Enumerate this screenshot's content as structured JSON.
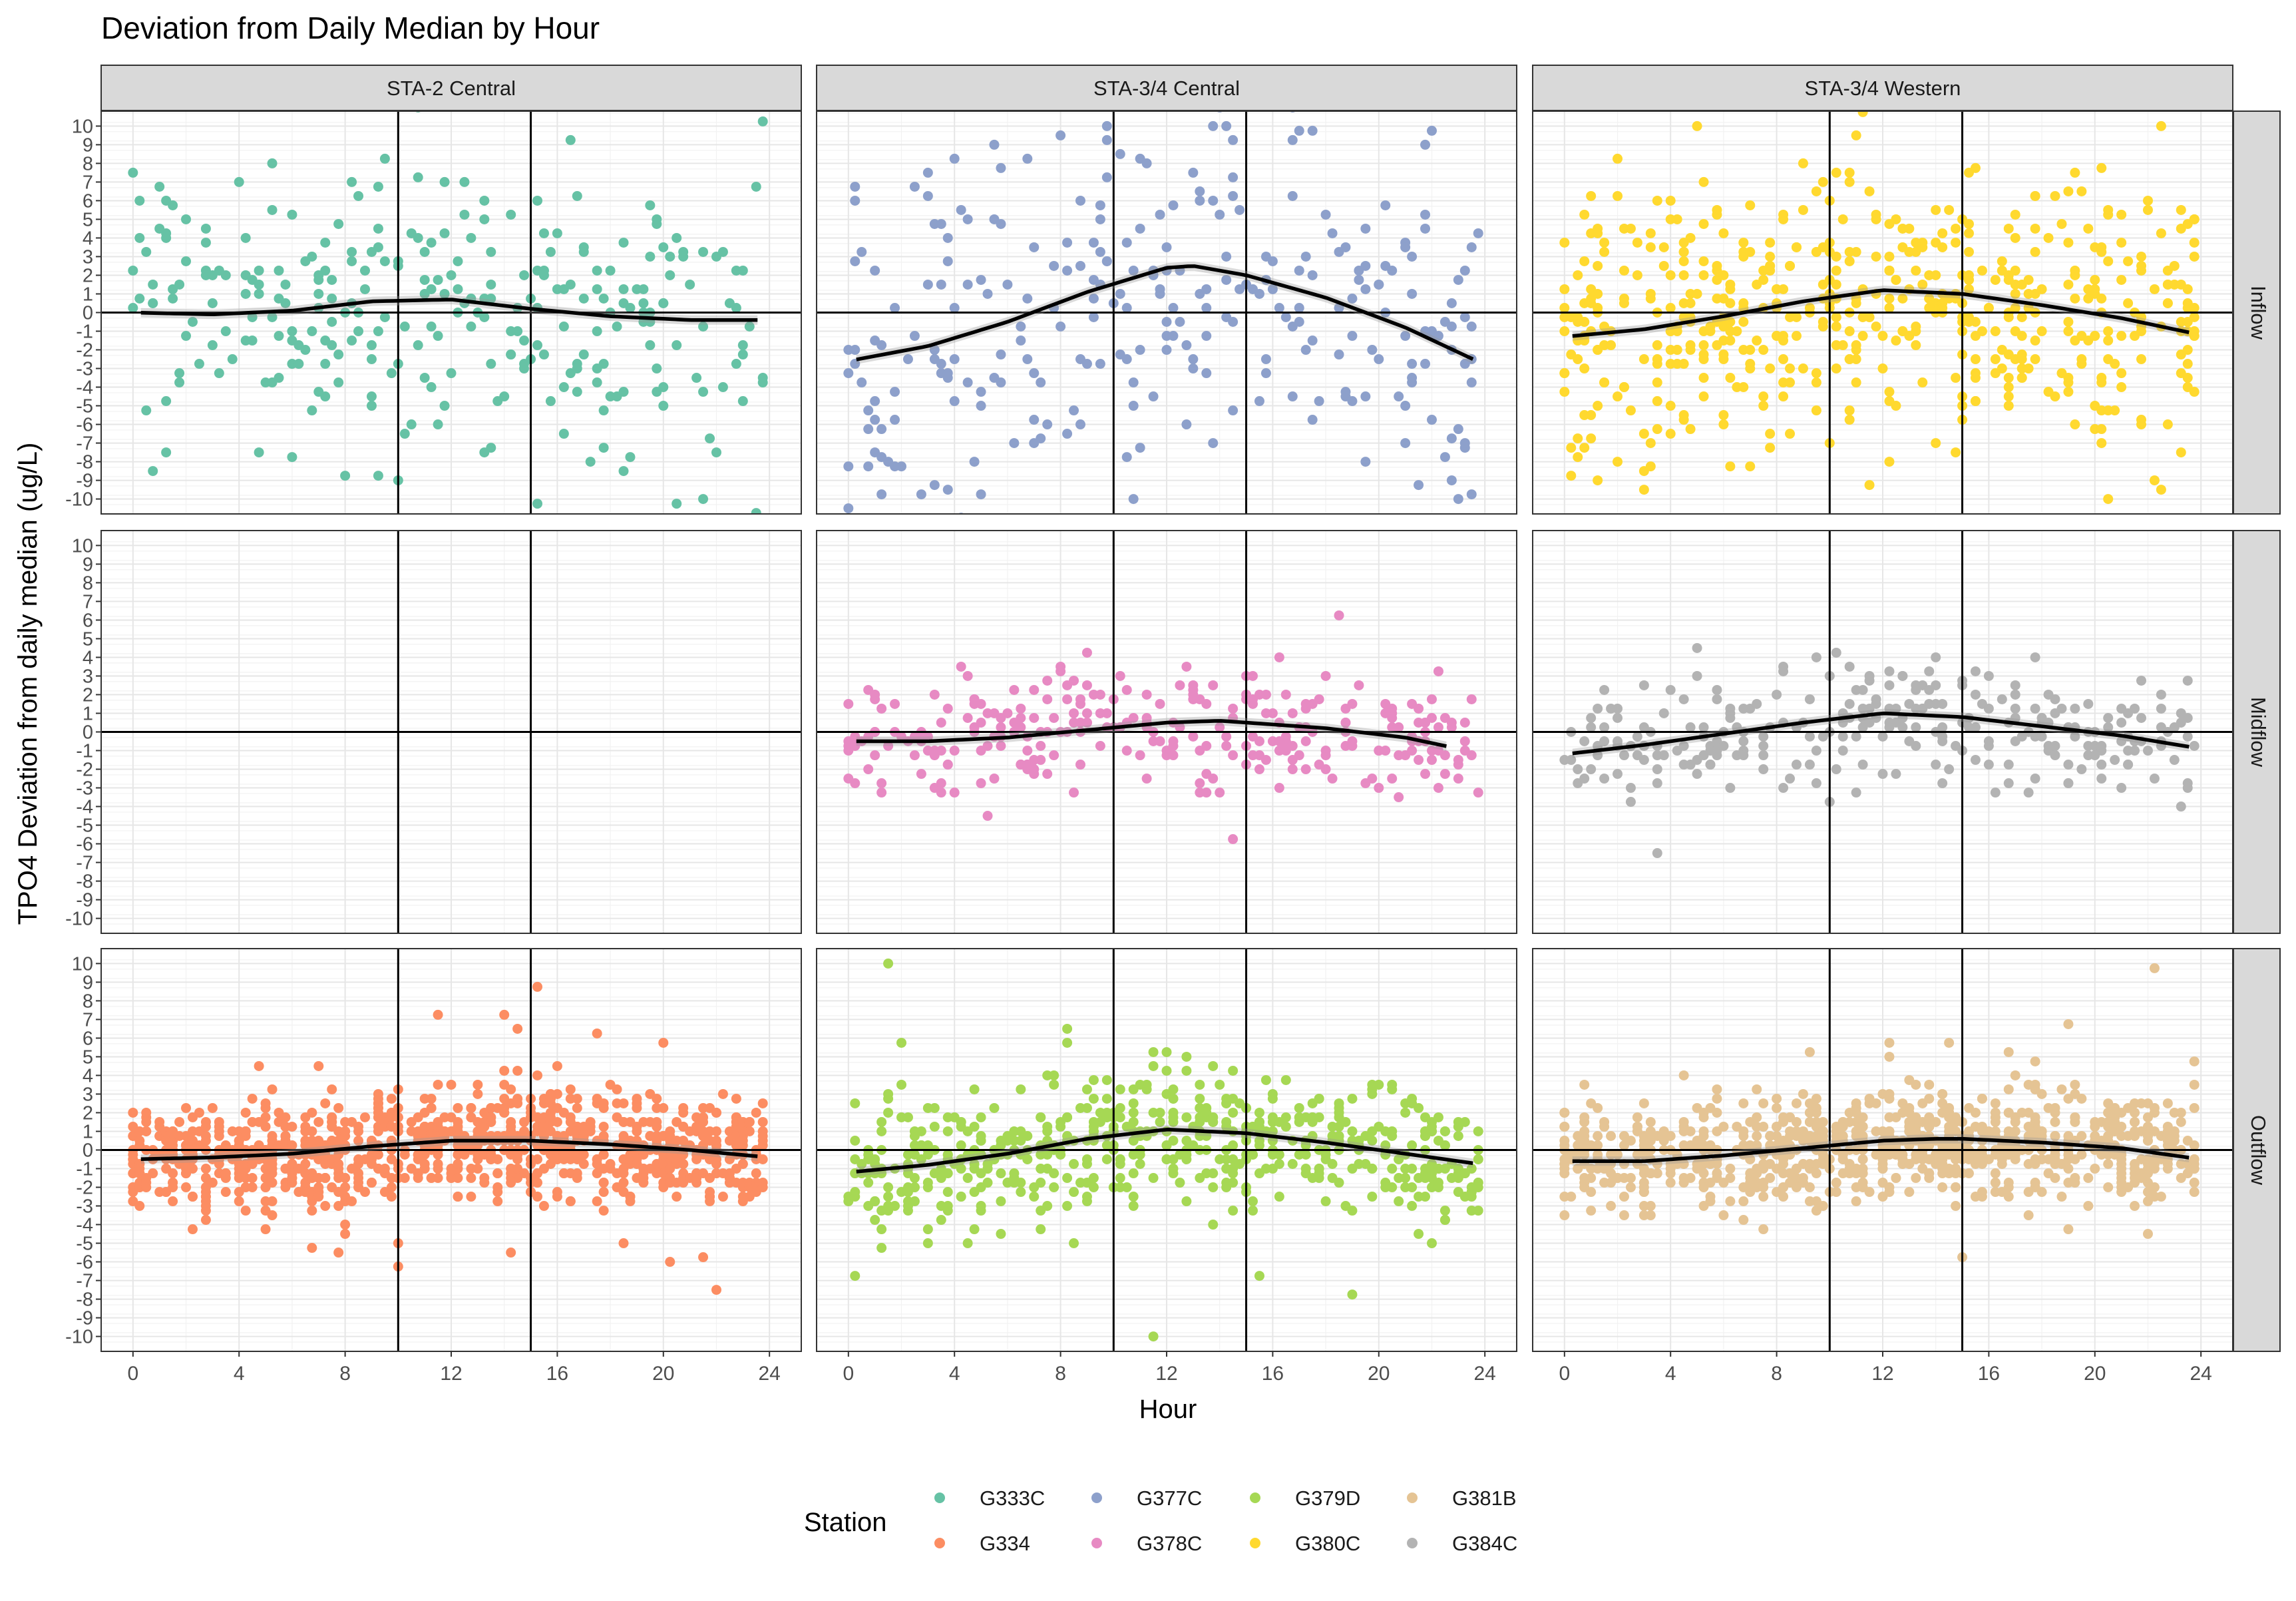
{
  "chart_data": {
    "type": "scatter",
    "title": "Deviation from Daily Median by Hour",
    "xlabel": "Hour",
    "ylabel": "TPO4 Deviation from daily median (ug/L)",
    "xlim": [
      -1.2,
      25.2
    ],
    "ylim": [
      -10.8,
      10.8
    ],
    "x_ticks": [
      "0",
      "4",
      "8",
      "12",
      "16",
      "20",
      "24"
    ],
    "y_ticks": [
      "-10",
      "-9",
      "-8",
      "-7",
      "-6",
      "-5",
      "-4",
      "-3",
      "-2",
      "-1",
      "0",
      "1",
      "2",
      "3",
      "4",
      "5",
      "6",
      "7",
      "8",
      "9",
      "10"
    ],
    "reference_lines": {
      "vertical_hours": [
        10,
        15
      ],
      "horizontal_value": 0
    },
    "facet_columns": [
      "STA-2 Central",
      "STA-3/4 Central",
      "STA-3/4 Western"
    ],
    "facet_rows": [
      "Inflow",
      "Midflow",
      "Outflow"
    ],
    "legend": {
      "title": "Station",
      "position": "bottom",
      "entries": [
        {
          "label": "G333C",
          "color": "#66C2A5"
        },
        {
          "label": "G334",
          "color": "#FC8D62"
        },
        {
          "label": "G377C",
          "color": "#8DA0CB"
        },
        {
          "label": "G378C",
          "color": "#E78AC3"
        },
        {
          "label": "G379D",
          "color": "#A6D854"
        },
        {
          "label": "G380C",
          "color": "#FFD92F"
        },
        {
          "label": "G381B",
          "color": "#E5C494"
        },
        {
          "label": "G384C",
          "color": "#B3B3B3"
        }
      ]
    },
    "panels": [
      {
        "col": "STA-2 Central",
        "row": "Inflow",
        "station": "G333C",
        "color": "#66C2A5",
        "spread": 6.5,
        "density": 1,
        "smooth": {
          "hours": [
            0,
            3,
            6,
            9,
            12,
            15,
            18,
            21,
            24
          ],
          "values": [
            0.0,
            -0.1,
            0.1,
            0.6,
            0.7,
            0.2,
            -0.2,
            -0.4,
            -0.4
          ]
        }
      },
      {
        "col": "STA-3/4 Central",
        "row": "Inflow",
        "station": "G377C",
        "color": "#8DA0CB",
        "spread": 9,
        "density": 1,
        "smooth": {
          "hours": [
            0,
            3,
            6,
            9,
            12,
            13,
            15,
            18,
            21,
            24
          ],
          "values": [
            -2.6,
            -1.8,
            -0.5,
            1.1,
            2.4,
            2.5,
            2.0,
            0.8,
            -0.8,
            -2.8
          ]
        }
      },
      {
        "col": "STA-3/4 Western",
        "row": "Inflow",
        "station": "G380C",
        "color": "#FFD92F",
        "spread": 7,
        "density": 2,
        "smooth": {
          "hours": [
            0,
            3,
            6,
            9,
            12,
            15,
            18,
            21,
            24
          ],
          "values": [
            -1.3,
            -0.9,
            -0.2,
            0.6,
            1.2,
            1.0,
            0.4,
            -0.3,
            -1.2
          ]
        }
      },
      {
        "col": "STA-2 Central",
        "row": "Midflow",
        "station": "",
        "color": "#999999",
        "spread": 0,
        "density": 0,
        "smooth": {
          "hours": [],
          "values": []
        }
      },
      {
        "col": "STA-3/4 Central",
        "row": "Midflow",
        "station": "G378C",
        "color": "#E78AC3",
        "spread": 2.6,
        "density": 1,
        "smooth": {
          "hours": [
            0,
            3,
            6,
            9,
            12,
            14,
            15,
            18,
            21,
            23
          ],
          "values": [
            -0.5,
            -0.5,
            -0.3,
            0.1,
            0.5,
            0.6,
            0.5,
            0.2,
            -0.3,
            -0.9
          ]
        }
      },
      {
        "col": "STA-3/4 Western",
        "row": "Midflow",
        "station": "G384C",
        "color": "#B3B3B3",
        "spread": 3,
        "density": 1,
        "smooth": {
          "hours": [
            0,
            3,
            6,
            9,
            12,
            15,
            18,
            21,
            24
          ],
          "values": [
            -1.2,
            -0.7,
            -0.1,
            0.5,
            1.0,
            0.8,
            0.3,
            -0.2,
            -0.9
          ]
        }
      },
      {
        "col": "STA-2 Central",
        "row": "Outflow",
        "station": "G334",
        "color": "#FC8D62",
        "spread": 2.6,
        "density": 3,
        "smooth": {
          "hours": [
            0,
            3,
            6,
            9,
            12,
            14,
            15,
            18,
            21,
            24
          ],
          "values": [
            -0.5,
            -0.4,
            -0.2,
            0.2,
            0.5,
            0.5,
            0.5,
            0.3,
            0.0,
            -0.4
          ]
        }
      },
      {
        "col": "STA-3/4 Central",
        "row": "Outflow",
        "station": "G379D",
        "color": "#A6D854",
        "spread": 3.2,
        "density": 2,
        "smooth": {
          "hours": [
            0,
            3,
            6,
            9,
            12,
            15,
            18,
            21,
            24
          ],
          "values": [
            -1.2,
            -0.8,
            -0.2,
            0.6,
            1.1,
            0.9,
            0.4,
            -0.2,
            -0.8
          ]
        }
      },
      {
        "col": "STA-3/4 Western",
        "row": "Outflow",
        "station": "G381B",
        "color": "#E5C494",
        "spread": 2.6,
        "density": 3,
        "smooth": {
          "hours": [
            0,
            3,
            6,
            9,
            12,
            14,
            15,
            18,
            21,
            24
          ],
          "values": [
            -0.6,
            -0.6,
            -0.3,
            0.1,
            0.5,
            0.6,
            0.6,
            0.4,
            0.1,
            -0.5
          ]
        }
      }
    ]
  }
}
